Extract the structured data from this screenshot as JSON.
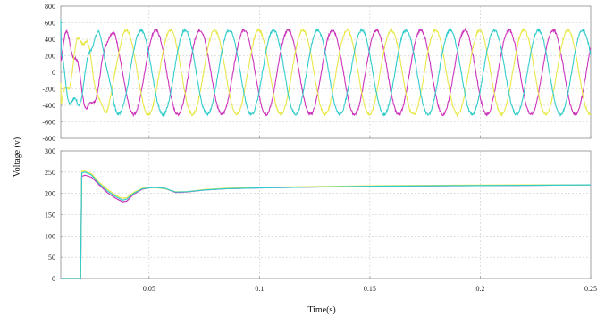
{
  "chart_data": [
    {
      "type": "line",
      "title": "",
      "xlabel": "",
      "ylabel": "",
      "xlim": [
        0.01,
        0.25
      ],
      "ylim": [
        -800,
        800
      ],
      "yticks": [
        800,
        600,
        400,
        200,
        0,
        -200,
        -400,
        -600,
        -800
      ],
      "yticklabels": [
        "800",
        "600",
        "400",
        "200",
        "0",
        "-200",
        "-400",
        "-600",
        "-800"
      ],
      "grid": true,
      "frequency_hz": 50,
      "amplitude_steady": 510,
      "series": [
        {
          "color": "#cc33bb",
          "phase_deg": 0,
          "initial_value": 560,
          "min_value": -650
        },
        {
          "color": "#e8e84a",
          "phase_deg": -120,
          "initial_value": -130,
          "min_value": -560
        },
        {
          "color": "#33cccc",
          "phase_deg": 120,
          "initial_value": 640,
          "min_value": -560
        }
      ]
    },
    {
      "type": "line",
      "title": "",
      "xlabel": "Time(s)",
      "ylabel": "",
      "xlim": [
        0.01,
        0.25
      ],
      "ylim": [
        0,
        300
      ],
      "xticks": [
        0.05,
        0.1,
        0.15,
        0.2,
        0.25
      ],
      "xticklabels": [
        "0.05",
        "0.1",
        "0.15",
        "0.2",
        "0.25"
      ],
      "yticks": [
        300,
        250,
        200,
        150,
        100,
        50,
        0
      ],
      "yticklabels": [
        "300",
        "250",
        "200",
        "150",
        "100",
        "50",
        "0"
      ],
      "grid": true,
      "step_time": 0.019,
      "x": [
        0.019,
        0.0195,
        0.021,
        0.024,
        0.027,
        0.031,
        0.035,
        0.038,
        0.04,
        0.043,
        0.047,
        0.052,
        0.057,
        0.062,
        0.067,
        0.075,
        0.085,
        0.1,
        0.125,
        0.15,
        0.18,
        0.22,
        0.25
      ],
      "series": [
        {
          "color": "#cc33bb",
          "values": [
            0,
            240,
            243,
            238,
            222,
            202,
            188,
            180,
            182,
            198,
            210,
            215,
            212,
            202,
            203,
            208,
            211,
            213,
            215,
            217,
            218,
            219,
            220
          ]
        },
        {
          "color": "#e8e84a",
          "values": [
            0,
            252,
            252,
            246,
            228,
            210,
            195,
            188,
            190,
            202,
            212,
            214,
            211,
            204,
            204,
            209,
            212,
            214,
            216,
            218,
            219,
            220,
            220
          ]
        },
        {
          "color": "#33cccc",
          "values": [
            0,
            248,
            250,
            243,
            225,
            206,
            192,
            184,
            187,
            200,
            211,
            214,
            212,
            203,
            204,
            208,
            211,
            213,
            215,
            217,
            218,
            219,
            220
          ]
        }
      ]
    }
  ],
  "ylabel_shared": "Voltage (v)"
}
